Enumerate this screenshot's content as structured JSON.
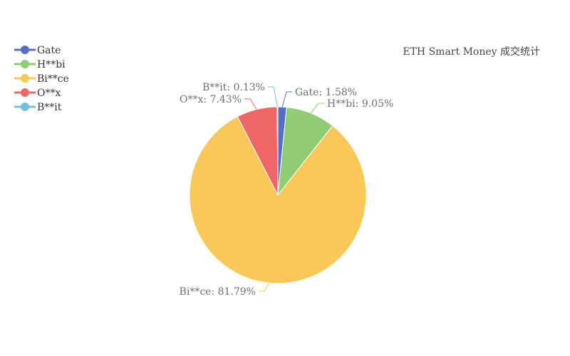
{
  "chart_data": {
    "type": "pie",
    "title": "ETH Smart Money 成交统计",
    "legend_position": "top-left",
    "series": [
      {
        "name": "Gate",
        "value": 1.58,
        "label": "Gate: 1.58%",
        "color": "#5470c6"
      },
      {
        "name": "H**bi",
        "value": 9.05,
        "label": "H**bi: 9.05%",
        "color": "#91cc75"
      },
      {
        "name": "Bi**ce",
        "value": 81.79,
        "label": "Bi**ce: 81.79%",
        "color": "#fac858"
      },
      {
        "name": "O**x",
        "value": 7.43,
        "label": "O**x: 7.43%",
        "color": "#ee6666"
      },
      {
        "name": "B**it",
        "value": 0.13,
        "label": "B**it: 0.13%",
        "color": "#73c0de"
      }
    ]
  }
}
